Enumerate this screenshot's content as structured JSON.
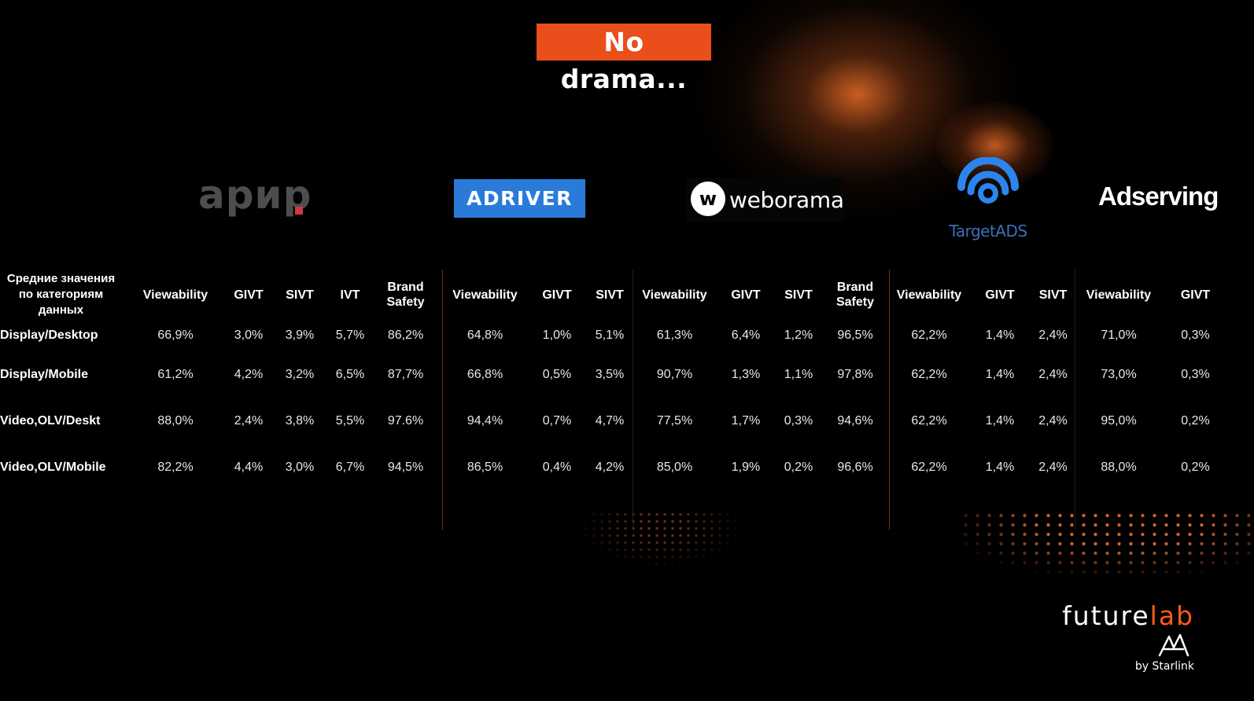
{
  "slide": {
    "title": "No drama...",
    "accent_color": "#e94e1b"
  },
  "logos": {
    "apir": "арир",
    "adriver": "ADRIVER",
    "weborama_mark": "w",
    "weborama": "weborama",
    "targetads": "TargetADS",
    "adserving": "Adserving"
  },
  "table": {
    "corner_header": "Средние значения по категориям данных",
    "columns": [
      "Viewability",
      "GIVT",
      "SIVT",
      "IVT",
      "Brand Safety",
      "Viewability",
      "GIVT",
      "SIVT",
      "Viewability",
      "GIVT",
      "SIVT",
      "Brand Safety",
      "Viewability",
      "GIVT",
      "SIVT",
      "Viewability",
      "GIVT"
    ],
    "rows": [
      {
        "label": "Display/Desktop",
        "values": [
          "66,9%",
          "3,0%",
          "3,9%",
          "5,7%",
          "86,2%",
          "64,8%",
          "1,0%",
          "5,1%",
          "61,3%",
          "6,4%",
          "1,2%",
          "96,5%",
          "62,2%",
          "1,4%",
          "2,4%",
          "71,0%",
          "0,3%"
        ]
      },
      {
        "label": "Display/Mobile",
        "values": [
          "61,2%",
          "4,2%",
          "3,2%",
          "6,5%",
          "87,7%",
          "66,8%",
          "0,5%",
          "3,5%",
          "90,7%",
          "1,3%",
          "1,1%",
          "97,8%",
          "62,2%",
          "1,4%",
          "2,4%",
          "73,0%",
          "0,3%"
        ]
      },
      {
        "label": "Video,OLV/Deskt",
        "values": [
          "88,0%",
          "2,4%",
          "3,8%",
          "5,5%",
          "97.6%",
          "94,4%",
          "0,7%",
          "4,7%",
          "77,5%",
          "1,7%",
          "0,3%",
          "94,6%",
          "62,2%",
          "1,4%",
          "2,4%",
          "95,0%",
          "0,2%"
        ]
      },
      {
        "label": "Video,OLV/Mobile",
        "values": [
          "82,2%",
          "4,4%",
          "3,0%",
          "6,7%",
          "94,5%",
          "86,5%",
          "0,4%",
          "4,2%",
          "85,0%",
          "1,9%",
          "0,2%",
          "96,6%",
          "62,2%",
          "1,4%",
          "2,4%",
          "88,0%",
          "0,2%"
        ]
      }
    ]
  },
  "footer": {
    "brand_future": "future",
    "brand_lab": "lab",
    "byline": "by Starlink"
  }
}
